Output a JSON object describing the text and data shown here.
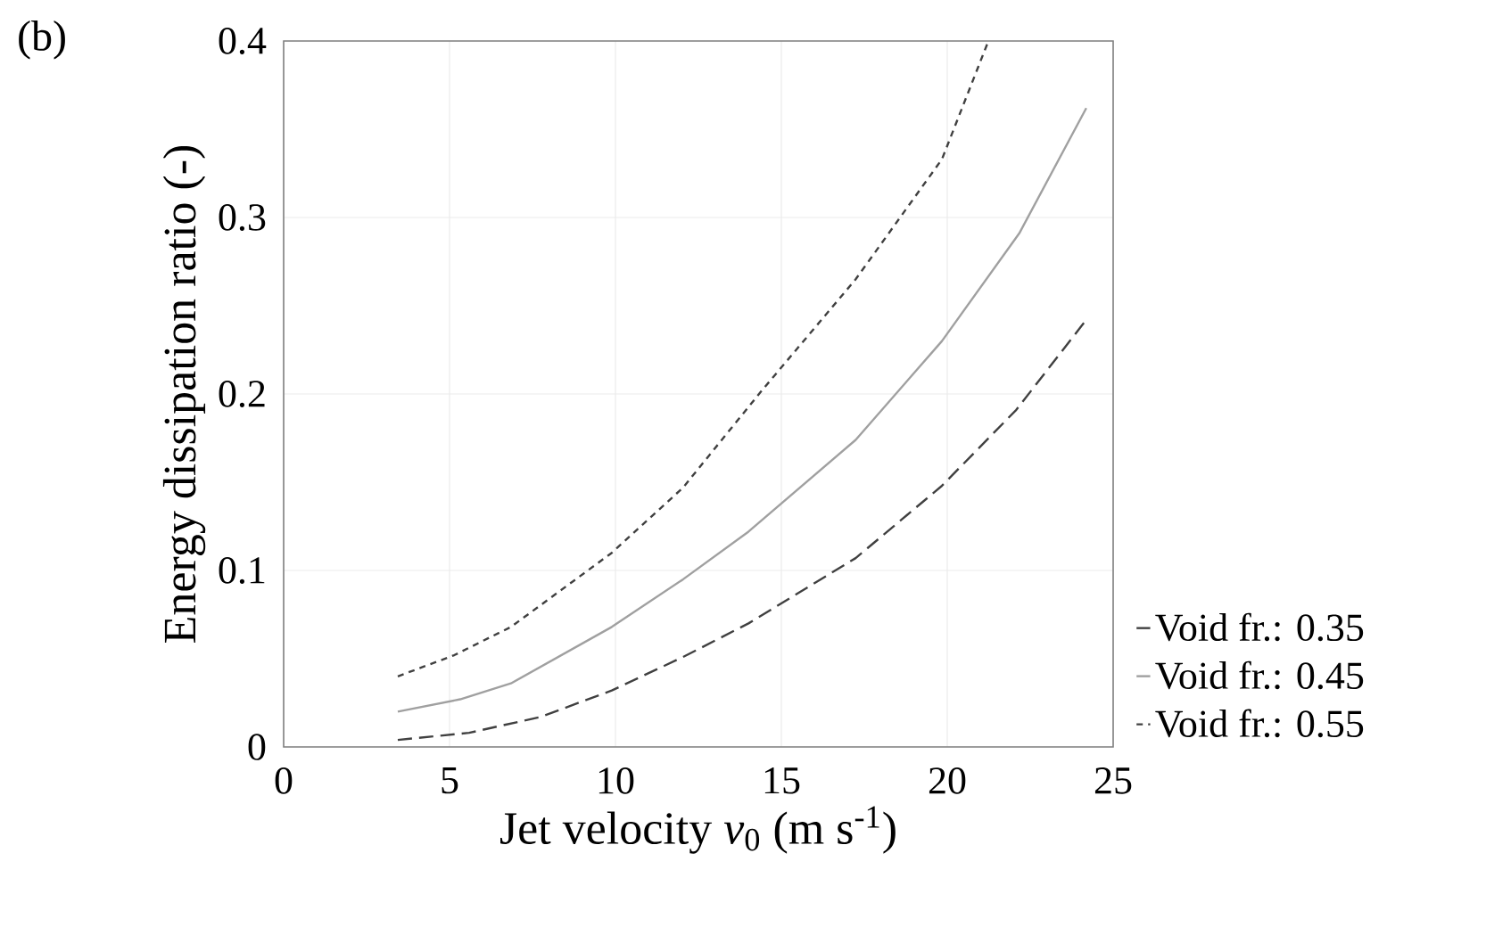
{
  "chart_data": {
    "type": "line",
    "xlabel": "Jet velocity *v*$_{0}$ (m s$^{-1}$)",
    "ylabel": "Energy dissipation ratio (-)",
    "annotations": [
      "(b)"
    ],
    "xlim": [
      0,
      25
    ],
    "xticks": [
      0,
      5,
      10,
      15,
      20,
      25
    ],
    "ylim": [
      0,
      0.4
    ],
    "yticks": [
      0,
      0.1,
      0.2,
      0.3,
      0.4
    ],
    "grid": true,
    "legend": "right",
    "marker": "none",
    "series": [
      {
        "name": "Void fr.: 0.35",
        "color": "#404040",
        "line_style": "dashed",
        "x": [
          3.44,
          5.59,
          7.74,
          9.89,
          12.04,
          14.01,
          17.24,
          19.84,
          22.08,
          24.23
        ],
        "values": [
          0.004,
          0.008,
          0.017,
          0.032,
          0.051,
          0.07,
          0.107,
          0.148,
          0.191,
          0.243
        ]
      },
      {
        "name": "Void fr.: 0.45",
        "color": "#a0a0a0",
        "line_style": "solid",
        "x": [
          3.44,
          5.32,
          6.85,
          9.89,
          12.04,
          14.01,
          17.24,
          19.84,
          22.17,
          24.19
        ],
        "values": [
          0.02,
          0.027,
          0.036,
          0.068,
          0.095,
          0.122,
          0.174,
          0.23,
          0.291,
          0.362
        ]
      },
      {
        "name": "Void fr.: 0.55",
        "color": "#404040",
        "line_style": "dotted",
        "x": [
          3.44,
          5.14,
          6.85,
          9.89,
          12.04,
          14.37,
          17.24,
          19.84,
          21.24
        ],
        "values": [
          0.04,
          0.052,
          0.068,
          0.11,
          0.147,
          0.201,
          0.265,
          0.333,
          0.4
        ]
      }
    ]
  }
}
